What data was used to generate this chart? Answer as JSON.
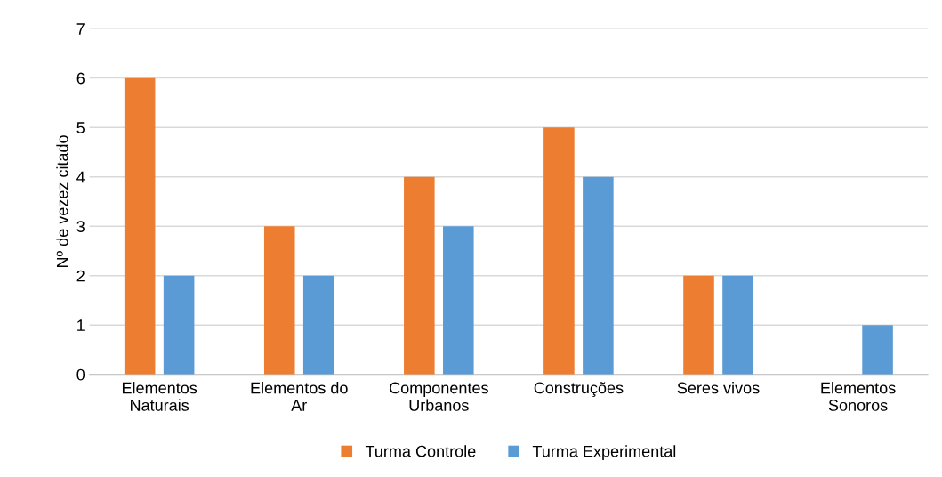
{
  "chart_data": {
    "type": "bar",
    "ylabel": "Nº de vezez citado",
    "categories": [
      "Elementos Naturais",
      "Elementos do Ar",
      "Componentes Urbanos",
      "Construções",
      "Seres vivos",
      "Elementos Sonoros"
    ],
    "series": [
      {
        "name": "Turma Controle",
        "color": "#ed7d31",
        "values": [
          6,
          3,
          4,
          5,
          2,
          0
        ]
      },
      {
        "name": "Turma Experimental",
        "color": "#5b9bd5",
        "values": [
          2,
          2,
          3,
          4,
          2,
          1
        ]
      }
    ],
    "ylim": [
      0,
      7
    ],
    "yticks": [
      0,
      1,
      2,
      3,
      4,
      5,
      6,
      7
    ],
    "grid": "y",
    "legend": "bottom"
  }
}
